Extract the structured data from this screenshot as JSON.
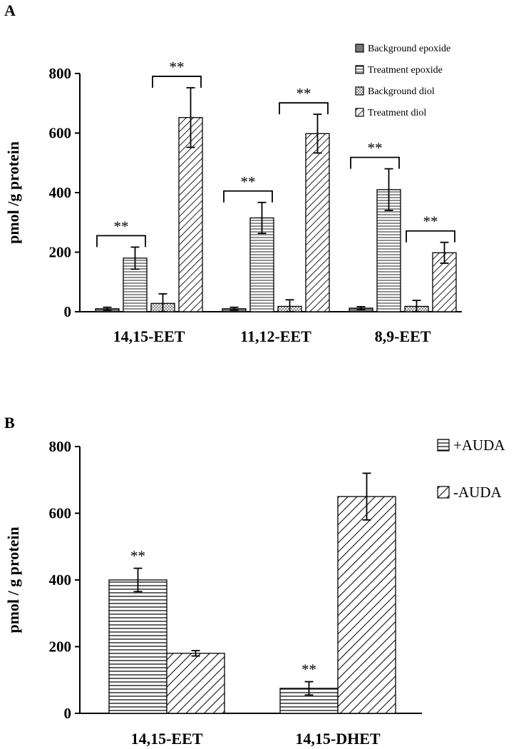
{
  "chart_data": [
    {
      "panel": "A",
      "type": "bar",
      "ylabel": "pmol /g protein",
      "ylim": [
        0,
        800
      ],
      "yticks": [
        0,
        200,
        400,
        600,
        800
      ],
      "categories": [
        "14,15-EET",
        "11,12-EET",
        "8,9-EET"
      ],
      "legend_position": "top-right",
      "series": [
        {
          "name": "Background epoxide",
          "values": [
            10,
            10,
            12
          ],
          "errors": [
            5,
            5,
            5
          ],
          "pattern": "solid",
          "color": "#777777"
        },
        {
          "name": "Treatment epoxide",
          "values": [
            180,
            315,
            410
          ],
          "errors": [
            37,
            52,
            70
          ],
          "pattern": "horizontal"
        },
        {
          "name": "Background diol",
          "values": [
            28,
            18,
            18
          ],
          "errors": [
            32,
            22,
            20
          ],
          "pattern": "dots"
        },
        {
          "name": "Treatment diol",
          "values": [
            652,
            598,
            198
          ],
          "errors": [
            100,
            65,
            35
          ],
          "pattern": "diagonal"
        }
      ],
      "significance": [
        {
          "category": 0,
          "from_series": 0,
          "to_series": 1,
          "label": "**"
        },
        {
          "category": 0,
          "from_series": 2,
          "to_series": 3,
          "label": "**"
        },
        {
          "category": 1,
          "from_series": 0,
          "to_series": 1,
          "label": "**"
        },
        {
          "category": 1,
          "from_series": 2,
          "to_series": 3,
          "label": "**"
        },
        {
          "category": 2,
          "from_series": 0,
          "to_series": 1,
          "label": "**"
        },
        {
          "category": 2,
          "from_series": 2,
          "to_series": 3,
          "label": "**"
        }
      ]
    },
    {
      "panel": "B",
      "type": "bar",
      "ylabel": "pmol / g protein",
      "ylim": [
        0,
        800
      ],
      "yticks": [
        0,
        200,
        400,
        600,
        800
      ],
      "categories": [
        "14,15-EET",
        "14,15-DHET"
      ],
      "legend_position": "right",
      "series": [
        {
          "name": "+AUDA",
          "values": [
            400,
            75
          ],
          "errors": [
            35,
            20
          ],
          "pattern": "horizontal"
        },
        {
          "name": "-AUDA",
          "values": [
            180,
            650
          ],
          "errors": [
            8,
            70
          ],
          "pattern": "diagonal"
        }
      ],
      "significance": [
        {
          "category": 0,
          "series": 0,
          "label": "**"
        },
        {
          "category": 1,
          "series": 0,
          "label": "**"
        }
      ]
    }
  ]
}
